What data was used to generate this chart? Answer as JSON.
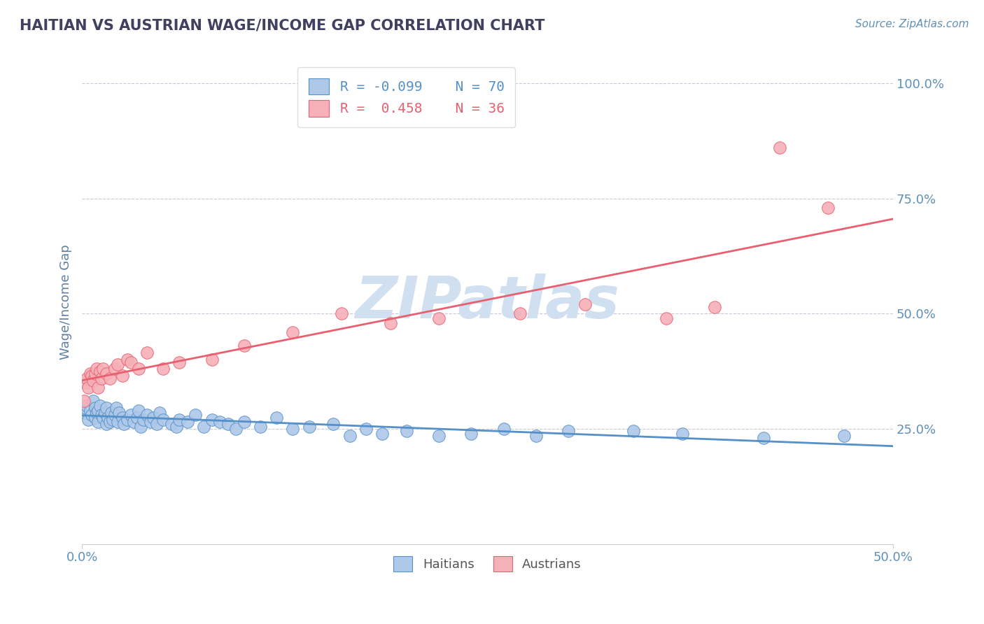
{
  "title": "HAITIAN VS AUSTRIAN WAGE/INCOME GAP CORRELATION CHART",
  "source_text": "Source: ZipAtlas.com",
  "ylabel": "Wage/Income Gap",
  "xlim": [
    0.0,
    0.5
  ],
  "ylim": [
    0.0,
    1.05
  ],
  "yticks": [
    0.25,
    0.5,
    0.75,
    1.0
  ],
  "ytick_labels": [
    "25.0%",
    "50.0%",
    "75.0%",
    "100.0%"
  ],
  "xticks": [
    0.0,
    0.5
  ],
  "xtick_labels": [
    "0.0%",
    "50.0%"
  ],
  "haitian_color": "#adc8e8",
  "austrian_color": "#f5b0b8",
  "haitian_line_color": "#5590c8",
  "austrian_line_color": "#e86070",
  "haitian_R": -0.099,
  "haitian_N": 70,
  "austrian_R": 0.458,
  "austrian_N": 36,
  "watermark": "ZIPatlas",
  "watermark_color": "#d0e0f0",
  "background_color": "#ffffff",
  "grid_color": "#c8c8d8",
  "title_color": "#404060",
  "axis_label_color": "#6080a0",
  "tick_label_color": "#6090b8",
  "haitian_x": [
    0.001,
    0.002,
    0.003,
    0.004,
    0.005,
    0.006,
    0.007,
    0.008,
    0.008,
    0.009,
    0.01,
    0.01,
    0.011,
    0.012,
    0.013,
    0.014,
    0.015,
    0.015,
    0.016,
    0.017,
    0.018,
    0.019,
    0.02,
    0.021,
    0.022,
    0.023,
    0.025,
    0.026,
    0.028,
    0.03,
    0.032,
    0.034,
    0.035,
    0.036,
    0.038,
    0.04,
    0.042,
    0.044,
    0.046,
    0.048,
    0.05,
    0.055,
    0.058,
    0.06,
    0.065,
    0.07,
    0.075,
    0.08,
    0.085,
    0.09,
    0.095,
    0.1,
    0.11,
    0.12,
    0.13,
    0.14,
    0.155,
    0.165,
    0.175,
    0.185,
    0.2,
    0.22,
    0.24,
    0.26,
    0.28,
    0.3,
    0.34,
    0.37,
    0.42,
    0.47
  ],
  "haitian_y": [
    0.285,
    0.295,
    0.3,
    0.27,
    0.29,
    0.28,
    0.31,
    0.275,
    0.295,
    0.285,
    0.29,
    0.265,
    0.3,
    0.28,
    0.275,
    0.285,
    0.26,
    0.295,
    0.275,
    0.265,
    0.285,
    0.27,
    0.28,
    0.295,
    0.265,
    0.285,
    0.275,
    0.26,
    0.27,
    0.28,
    0.265,
    0.275,
    0.29,
    0.255,
    0.27,
    0.28,
    0.265,
    0.275,
    0.26,
    0.285,
    0.27,
    0.26,
    0.255,
    0.27,
    0.265,
    0.28,
    0.255,
    0.27,
    0.265,
    0.26,
    0.25,
    0.265,
    0.255,
    0.275,
    0.25,
    0.255,
    0.26,
    0.235,
    0.25,
    0.24,
    0.245,
    0.235,
    0.24,
    0.25,
    0.235,
    0.245,
    0.245,
    0.24,
    0.23,
    0.235
  ],
  "austrian_x": [
    0.001,
    0.002,
    0.003,
    0.004,
    0.005,
    0.006,
    0.007,
    0.008,
    0.009,
    0.01,
    0.011,
    0.012,
    0.013,
    0.015,
    0.017,
    0.02,
    0.022,
    0.025,
    0.028,
    0.03,
    0.035,
    0.04,
    0.05,
    0.06,
    0.08,
    0.1,
    0.13,
    0.16,
    0.19,
    0.22,
    0.27,
    0.31,
    0.36,
    0.39,
    0.43,
    0.46
  ],
  "austrian_y": [
    0.31,
    0.35,
    0.36,
    0.34,
    0.37,
    0.365,
    0.355,
    0.37,
    0.38,
    0.34,
    0.375,
    0.36,
    0.38,
    0.37,
    0.36,
    0.38,
    0.39,
    0.365,
    0.4,
    0.395,
    0.38,
    0.415,
    0.38,
    0.395,
    0.4,
    0.43,
    0.46,
    0.5,
    0.48,
    0.49,
    0.5,
    0.52,
    0.49,
    0.515,
    0.86,
    0.73
  ]
}
